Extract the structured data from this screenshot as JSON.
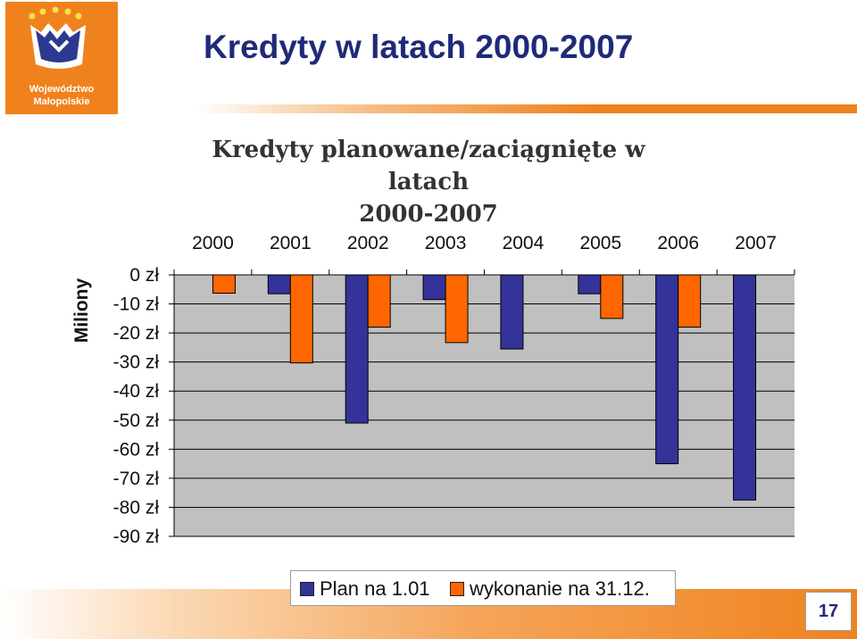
{
  "logo": {
    "line1": "Województwo",
    "line2": "Małopolskie"
  },
  "slide": {
    "title": "Kredyty w latach 2000-2007",
    "page_number": "17"
  },
  "colors": {
    "accent": "#f0821e",
    "title": "#1f2a78",
    "plan": "#333399",
    "wykonanie": "#ff6600",
    "plot_bg": "#c0c0c0"
  },
  "chart_data": {
    "type": "bar",
    "title_lines": [
      "Kredyty planowane/zaciągnięte w latach",
      "2000-2007"
    ],
    "ylabel": "Miliony",
    "categories": [
      "2000",
      "2001",
      "2002",
      "2003",
      "2004",
      "2005",
      "2006",
      "2007"
    ],
    "series": [
      {
        "name": "Plan na 1.01",
        "values": [
          0,
          -6.5,
          -51,
          -8.5,
          -25.5,
          -6.5,
          -65,
          -77.5
        ]
      },
      {
        "name": "wykonanie na 31.12.",
        "values": [
          -6.3,
          -30.3,
          -18,
          -23.3,
          0,
          -15,
          -18,
          0
        ]
      }
    ],
    "y_ticks": [
      0,
      -10,
      -20,
      -30,
      -40,
      -50,
      -60,
      -70,
      -80,
      -90
    ],
    "y_tick_labels": [
      "0 zł",
      "-10 zł",
      "-20 zł",
      "-30 zł",
      "-40 zł",
      "-50 zł",
      "-60 zł",
      "-70 zł",
      "-80 zł",
      "-90 zł"
    ],
    "ylim": [
      -90,
      0
    ],
    "x_axis_position": "top",
    "grid": true,
    "legend_position": "bottom"
  }
}
